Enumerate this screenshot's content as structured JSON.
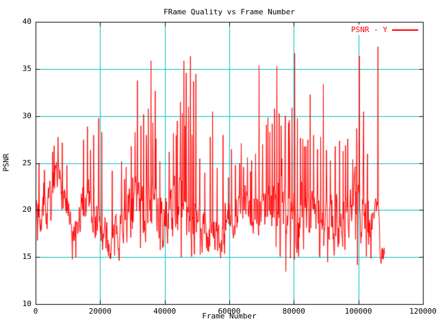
{
  "window": {
    "title": "FRame Quality vs Frame Number",
    "background": "#ffffff"
  },
  "chart_data": {
    "type": "line",
    "title": "FRame Quality vs Frame Number",
    "xlabel": "Frame Number",
    "ylabel": "PSNR",
    "xlim": [
      0,
      120000
    ],
    "ylim": [
      10,
      40
    ],
    "x_ticks": [
      0,
      20000,
      40000,
      60000,
      80000,
      100000,
      120000
    ],
    "y_ticks": [
      10,
      15,
      20,
      25,
      30,
      35,
      40
    ],
    "grid": true,
    "legend": {
      "label": "PSNR - Y",
      "position": "top-right"
    },
    "colors": {
      "grid": "#00c0c0",
      "series": "#ff0000",
      "axis": "#000000",
      "text": "#000000",
      "background": "#ffffff"
    },
    "series": [
      {
        "name": "PSNR - Y",
        "color": "#ff0000",
        "x_start": 0,
        "x_end": 108000,
        "sample_step": 120,
        "noise_seed": 7,
        "baseline_envelope": [
          [
            0,
            20.2,
            1.8
          ],
          [
            1500,
            20.0,
            1.8
          ],
          [
            3000,
            19.8,
            1.8
          ],
          [
            4500,
            20.0,
            2.0
          ],
          [
            6000,
            21.5,
            2.0
          ],
          [
            7500,
            22.6,
            1.8
          ],
          [
            9000,
            21.5,
            2.0
          ],
          [
            10500,
            17.8,
            1.5
          ],
          [
            12000,
            16.6,
            1.3
          ],
          [
            13500,
            18.5,
            2.0
          ],
          [
            15000,
            21.3,
            2.2
          ],
          [
            16500,
            21.8,
            2.2
          ],
          [
            18000,
            20.0,
            2.2
          ],
          [
            19500,
            18.8,
            2.4
          ],
          [
            21000,
            17.3,
            1.8
          ],
          [
            22500,
            16.4,
            1.4
          ],
          [
            24000,
            16.6,
            1.5
          ],
          [
            25500,
            18.0,
            2.0
          ],
          [
            27000,
            19.3,
            2.0
          ],
          [
            28500,
            19.4,
            2.2
          ],
          [
            30000,
            19.6,
            2.4
          ],
          [
            31500,
            20.3,
            2.4
          ],
          [
            33000,
            20.0,
            2.6
          ],
          [
            34500,
            20.6,
            2.6
          ],
          [
            36000,
            21.2,
            2.6
          ],
          [
            37500,
            19.8,
            2.4
          ],
          [
            39000,
            18.8,
            2.0
          ],
          [
            40500,
            19.4,
            2.2
          ],
          [
            42000,
            20.4,
            2.6
          ],
          [
            43500,
            21.0,
            2.6
          ],
          [
            45000,
            21.2,
            2.8
          ],
          [
            46500,
            21.0,
            2.8
          ],
          [
            48000,
            19.8,
            2.4
          ],
          [
            49500,
            18.4,
            2.0
          ],
          [
            51000,
            17.6,
            1.8
          ],
          [
            52500,
            18.0,
            2.0
          ],
          [
            54000,
            18.4,
            2.4
          ],
          [
            55500,
            17.8,
            2.0
          ],
          [
            57000,
            16.9,
            1.8
          ],
          [
            58500,
            17.6,
            1.8
          ],
          [
            60000,
            19.2,
            1.8
          ],
          [
            61500,
            20.0,
            1.8
          ],
          [
            63000,
            20.4,
            1.8
          ],
          [
            64500,
            20.5,
            1.9
          ],
          [
            66000,
            20.4,
            2.0
          ],
          [
            67500,
            20.5,
            2.1
          ],
          [
            69000,
            20.1,
            2.2
          ],
          [
            70500,
            20.6,
            2.3
          ],
          [
            72000,
            21.0,
            2.5
          ],
          [
            73500,
            21.0,
            2.8
          ],
          [
            75000,
            20.5,
            2.9
          ],
          [
            76500,
            20.0,
            2.9
          ],
          [
            78000,
            19.6,
            2.9
          ],
          [
            79500,
            20.0,
            2.8
          ],
          [
            81000,
            20.0,
            2.7
          ],
          [
            82500,
            20.4,
            2.5
          ],
          [
            84000,
            20.0,
            2.5
          ],
          [
            85500,
            20.4,
            2.4
          ],
          [
            87000,
            20.0,
            2.4
          ],
          [
            88500,
            19.6,
            2.4
          ],
          [
            90000,
            19.3,
            2.4
          ],
          [
            91500,
            19.0,
            2.4
          ],
          [
            93000,
            19.0,
            2.2
          ],
          [
            94500,
            18.6,
            2.0
          ],
          [
            96000,
            19.6,
            2.2
          ],
          [
            97500,
            21.0,
            2.0
          ],
          [
            99000,
            20.8,
            2.0
          ],
          [
            100500,
            19.9,
            2.3
          ],
          [
            102000,
            18.8,
            2.2
          ],
          [
            103500,
            17.6,
            1.8
          ],
          [
            104500,
            20.3,
            0.8
          ],
          [
            106200,
            20.4,
            0.8
          ],
          [
            106500,
            16.2,
            1.0
          ],
          [
            107200,
            15.3,
            0.9
          ],
          [
            108000,
            15.1,
            0.8
          ]
        ],
        "peak_events": [
          [
            1000,
            25.0
          ],
          [
            2600,
            24.3
          ],
          [
            5200,
            26.2
          ],
          [
            6800,
            27.8
          ],
          [
            8200,
            27.2
          ],
          [
            9600,
            24.8
          ],
          [
            14800,
            27.5
          ],
          [
            15900,
            28.9
          ],
          [
            16900,
            26.4
          ],
          [
            19400,
            29.8
          ],
          [
            20400,
            28.3
          ],
          [
            23600,
            24.2
          ],
          [
            26500,
            25.2
          ],
          [
            27900,
            24.6
          ],
          [
            29500,
            26.8
          ],
          [
            30700,
            28.3
          ],
          [
            31400,
            33.8
          ],
          [
            32500,
            29.0
          ],
          [
            33400,
            30.2
          ],
          [
            34200,
            28.0
          ],
          [
            34800,
            30.8
          ],
          [
            35600,
            35.9
          ],
          [
            36200,
            29.3
          ],
          [
            36900,
            32.7
          ],
          [
            37200,
            27.6
          ],
          [
            38400,
            25.2
          ],
          [
            41300,
            26.2
          ],
          [
            42600,
            28.2
          ],
          [
            43800,
            29.5
          ],
          [
            44700,
            31.5
          ],
          [
            45300,
            30.3
          ],
          [
            45800,
            35.9
          ],
          [
            46200,
            29.0
          ],
          [
            46600,
            34.6
          ],
          [
            47300,
            31.0
          ],
          [
            47900,
            36.4
          ],
          [
            48400,
            28.0
          ],
          [
            48800,
            33.7
          ],
          [
            49500,
            34.5
          ],
          [
            50800,
            25.5
          ],
          [
            52300,
            24.0
          ],
          [
            54000,
            27.8
          ],
          [
            54700,
            30.5
          ],
          [
            56200,
            24.5
          ],
          [
            57900,
            28.0
          ],
          [
            59600,
            23.5
          ],
          [
            60600,
            26.5
          ],
          [
            61800,
            24.8
          ],
          [
            63100,
            25.0
          ],
          [
            64300,
            24.6
          ],
          [
            65500,
            25.6
          ],
          [
            66800,
            25.3
          ],
          [
            68000,
            26.0
          ],
          [
            69100,
            35.4
          ],
          [
            70200,
            27.0
          ],
          [
            71400,
            29.1
          ],
          [
            72500,
            28.3
          ],
          [
            73200,
            29.2
          ],
          [
            73900,
            30.8
          ],
          [
            74600,
            35.3
          ],
          [
            75300,
            30.3
          ],
          [
            76000,
            29.0
          ],
          [
            77100,
            28.6
          ],
          [
            78200,
            29.3
          ],
          [
            79300,
            30.9
          ],
          [
            80200,
            36.7
          ],
          [
            81000,
            29.8
          ],
          [
            82000,
            27.7
          ],
          [
            83200,
            26.8
          ],
          [
            84200,
            27.5
          ],
          [
            85000,
            32.3
          ],
          [
            86000,
            28.0
          ],
          [
            87200,
            26.5
          ],
          [
            88200,
            27.8
          ],
          [
            89000,
            33.4
          ],
          [
            90000,
            26.4
          ],
          [
            91200,
            25.3
          ],
          [
            92800,
            26.8
          ],
          [
            94100,
            27.4
          ],
          [
            95200,
            26.3
          ],
          [
            96600,
            27.6
          ],
          [
            98100,
            25.4
          ],
          [
            99400,
            28.7
          ],
          [
            100200,
            36.4
          ],
          [
            101500,
            30.5
          ],
          [
            102700,
            26.0
          ],
          [
            106000,
            37.4
          ]
        ],
        "dip_events": [
          [
            500,
            16.8
          ],
          [
            11300,
            14.8
          ],
          [
            12400,
            15.0
          ],
          [
            22900,
            14.9
          ],
          [
            24400,
            15.2
          ],
          [
            39200,
            16.0
          ],
          [
            50900,
            15.3
          ],
          [
            53500,
            15.6
          ],
          [
            57200,
            14.9
          ],
          [
            58400,
            15.4
          ],
          [
            75600,
            15.2
          ],
          [
            77400,
            13.5
          ],
          [
            78800,
            14.9
          ],
          [
            81400,
            15.1
          ],
          [
            88000,
            15.0
          ],
          [
            90300,
            14.5
          ],
          [
            92400,
            15.2
          ],
          [
            95700,
            15.8
          ],
          [
            99600,
            14.2
          ],
          [
            102400,
            15.1
          ],
          [
            103800,
            14.9
          ]
        ]
      }
    ]
  }
}
